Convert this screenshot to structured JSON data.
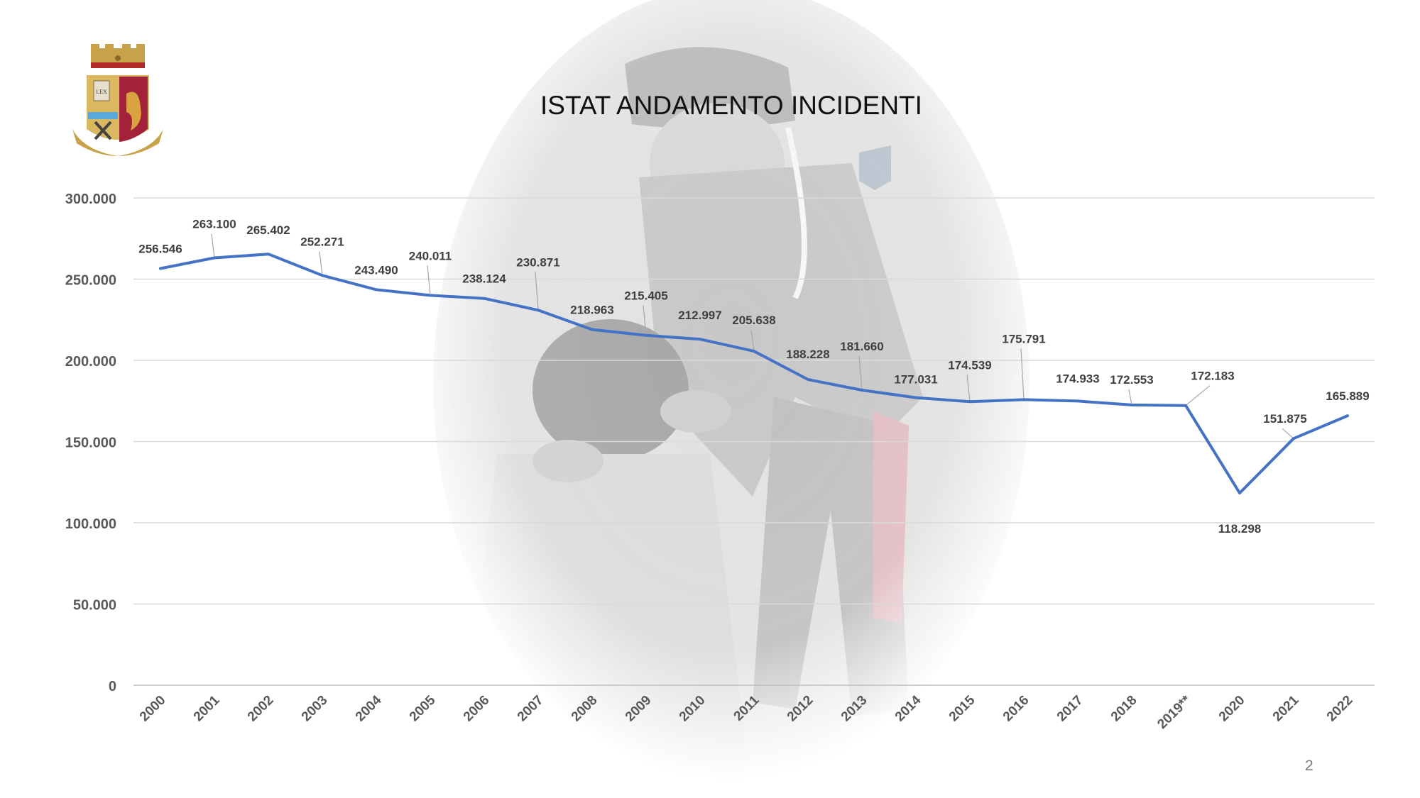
{
  "slide": {
    "title": "ISTAT ANDAMENTO INCIDENTI",
    "page_number": "2",
    "logo_motto": "LEX",
    "accent_line": "#4472c4"
  },
  "chart_data": {
    "type": "line",
    "title": "",
    "xlabel": "",
    "ylabel": "",
    "ylim": [
      0,
      300000
    ],
    "yticks": [
      0,
      50000,
      100000,
      150000,
      200000,
      250000,
      300000
    ],
    "ytick_labels": [
      "0",
      "50.000",
      "100.000",
      "150.000",
      "200.000",
      "250.000",
      "300.000"
    ],
    "grid": true,
    "legend": "none",
    "categories": [
      "2000",
      "2001",
      "2002",
      "2003",
      "2004",
      "2005",
      "2006",
      "2007",
      "2008",
      "2009",
      "2010",
      "2011",
      "2012",
      "2013",
      "2014",
      "2015",
      "2016",
      "2017",
      "2018",
      "2019**",
      "2020",
      "2021",
      "2022"
    ],
    "series": [
      {
        "color": "#4472c4",
        "values": [
          256546,
          263100,
          265402,
          252271,
          243490,
          240011,
          238124,
          230871,
          218963,
          215405,
          212997,
          205638,
          188228,
          181660,
          177031,
          174539,
          175791,
          174933,
          172553,
          172183,
          118298,
          151875,
          165889
        ],
        "labels": [
          "256.546",
          "263.100",
          "265.402",
          "252.271",
          "243.490",
          "240.011",
          "238.124",
          "230.871",
          "218.963",
          "215.405",
          "212.997",
          "205.638",
          "188.228",
          "181.660",
          "177.031",
          "174.539",
          "175.791",
          "174.933",
          "172.553",
          "172.183",
          "118.298",
          "151.875",
          "165.889"
        ]
      }
    ]
  }
}
